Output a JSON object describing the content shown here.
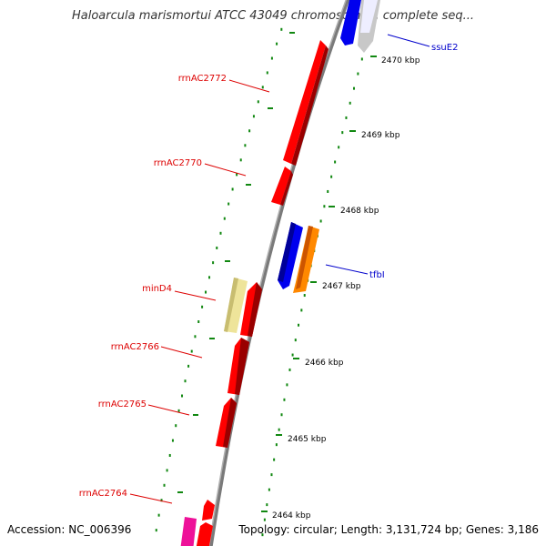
{
  "title": "Haloarcula marismortui ATCC 43049 chromosome I, complete seq...",
  "footer": {
    "accession": "Accession: NC_006396",
    "summary": "Topology: circular; Length: 3,131,724 bp; Genes: 3,186"
  },
  "ticks": {
    "right": [
      "2470 kbp",
      "2469 kbp",
      "2468 kbp",
      "2467 kbp",
      "2466 kbp",
      "2465 kbp",
      "2464 kbp"
    ]
  },
  "genes": [
    {
      "label": "ssuE2",
      "color": "#0000cc"
    },
    {
      "label": "tfbI",
      "color": "#0000cc"
    },
    {
      "label": "rrnAC2772",
      "color": "#dd0000"
    },
    {
      "label": "rrnAC2770",
      "color": "#dd0000"
    },
    {
      "label": "minD4",
      "color": "#dd0000"
    },
    {
      "label": "rrnAC2766",
      "color": "#dd0000"
    },
    {
      "label": "rrnAC2765",
      "color": "#dd0000"
    },
    {
      "label": "rrnAC2764",
      "color": "#dd0000"
    }
  ],
  "colors": {
    "red_feature": "#ff0000",
    "blue_feature": "#0000ee",
    "orange_feature": "#ff8800",
    "yellow_feature": "#eee49a",
    "magenta_feature": "#ee1199",
    "gray_feature": "#c8c8c8",
    "backbone": "#888888",
    "tick": "#118811"
  }
}
